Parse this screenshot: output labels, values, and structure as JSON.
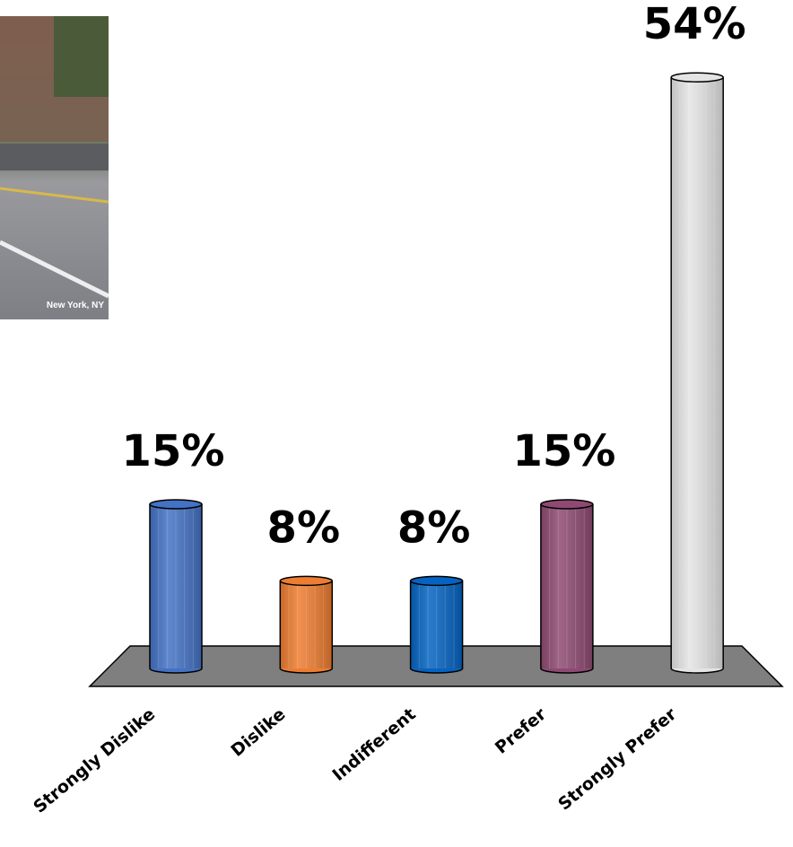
{
  "photo": {
    "caption": "New York, NY"
  },
  "chart_data": {
    "type": "bar",
    "categories": [
      "Strongly Dislike",
      "Dislike",
      "Indifferent",
      "Prefer",
      "Strongly Prefer"
    ],
    "values": [
      15,
      8,
      8,
      15,
      54
    ],
    "value_labels": [
      "15%",
      "8%",
      "8%",
      "15%",
      "54%"
    ],
    "colors": [
      "#4472c4",
      "#ed7d31",
      "#0563c1",
      "#8e4a72",
      "#e4e4e4"
    ]
  }
}
